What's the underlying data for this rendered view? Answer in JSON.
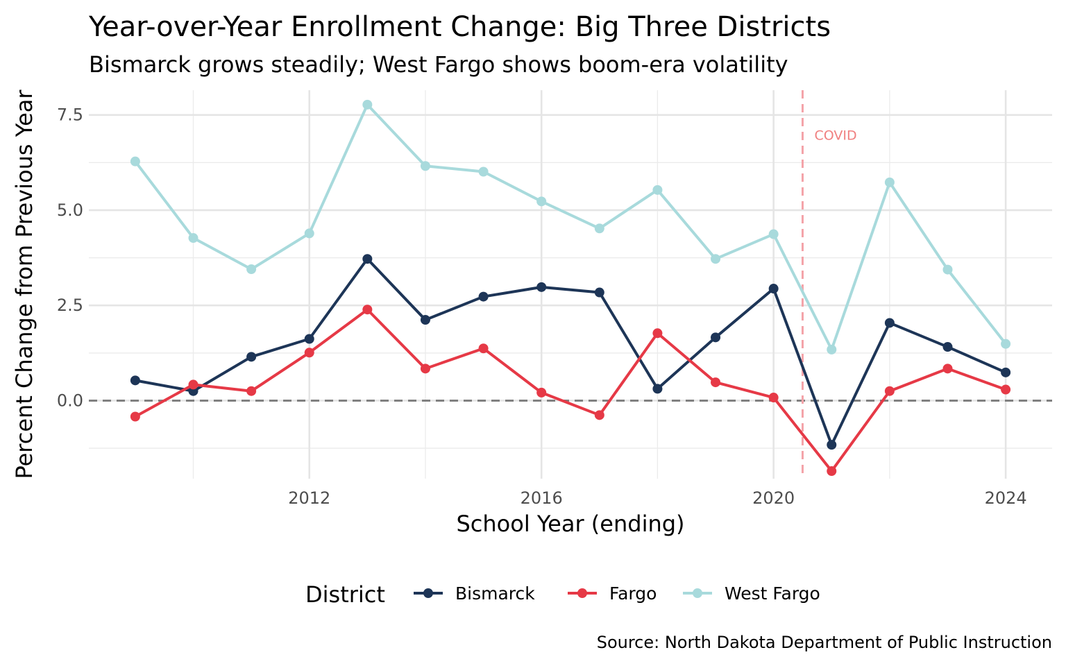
{
  "chart_data": {
    "type": "line",
    "title": "Year-over-Year Enrollment Change: Big Three Districts",
    "subtitle": "Bismarck grows steadily; West Fargo shows boom-era volatility",
    "xlabel": "School Year (ending)",
    "ylabel": "Percent Change from Previous Year",
    "caption": "Source: North Dakota Department of Public Instruction",
    "x": [
      2009,
      2010,
      2011,
      2012,
      2013,
      2014,
      2015,
      2016,
      2017,
      2018,
      2019,
      2020,
      2021,
      2022,
      2023,
      2024
    ],
    "xlim": [
      2008.2,
      2024.8
    ],
    "ylim": [
      -2.05,
      8.15
    ],
    "x_ticks": [
      "2012",
      "2016",
      "2020",
      "2024"
    ],
    "x_tick_values": [
      2012,
      2016,
      2020,
      2024
    ],
    "y_ticks": [
      "0.0",
      "2.5",
      "5.0",
      "7.5"
    ],
    "y_tick_values": [
      0,
      2.5,
      5,
      7.5
    ],
    "grid": true,
    "legend": {
      "title": "District",
      "placement": "bottom"
    },
    "reference_lines": [
      {
        "axis": "y",
        "value": 0,
        "color": "#808080",
        "style": "dashed"
      },
      {
        "axis": "x",
        "value": 2020.5,
        "color": "#f4a3a8",
        "style": "dashed",
        "label": "COVID",
        "label_color": "#f08080"
      }
    ],
    "series": [
      {
        "name": "Bismarck",
        "color": "#1d3557",
        "values": [
          0.53,
          0.25,
          1.15,
          1.62,
          3.72,
          2.12,
          2.73,
          2.98,
          2.84,
          0.31,
          1.66,
          2.94,
          -1.16,
          2.04,
          1.41,
          0.74
        ]
      },
      {
        "name": "Fargo",
        "color": "#e63946",
        "values": [
          -0.42,
          0.42,
          0.25,
          1.26,
          2.39,
          0.84,
          1.37,
          0.21,
          -0.38,
          1.77,
          0.48,
          0.08,
          -1.85,
          0.25,
          0.84,
          0.29
        ]
      },
      {
        "name": "West Fargo",
        "color": "#a8dadc",
        "values": [
          6.28,
          4.27,
          3.45,
          4.39,
          7.77,
          6.16,
          6.01,
          5.23,
          4.52,
          5.53,
          3.72,
          4.37,
          1.34,
          5.73,
          3.44,
          1.49
        ]
      }
    ]
  }
}
